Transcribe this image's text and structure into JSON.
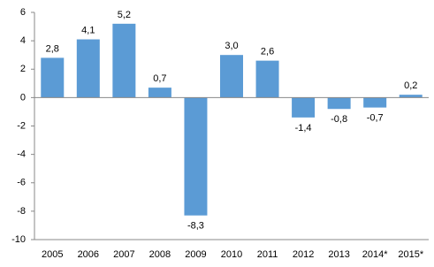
{
  "chart_data": {
    "type": "bar",
    "categories": [
      "2005",
      "2006",
      "2007",
      "2008",
      "2009",
      "2010",
      "2011",
      "2012",
      "2013",
      "2014*",
      "2015*"
    ],
    "values": [
      2.8,
      4.1,
      5.2,
      0.7,
      -8.3,
      3.0,
      2.6,
      -1.4,
      -0.8,
      -0.7,
      0.2
    ],
    "value_labels": [
      "2,8",
      "4,1",
      "5,2",
      "0,7",
      "-8,3",
      "3,0",
      "2,6",
      "-1,4",
      "-0,8",
      "-0,7",
      "0,2"
    ],
    "color": "#5b9bd5",
    "ylim": [
      -10,
      6
    ],
    "yticks": [
      -10,
      -8,
      -6,
      -4,
      -2,
      0,
      2,
      4,
      6
    ],
    "grid": false
  }
}
